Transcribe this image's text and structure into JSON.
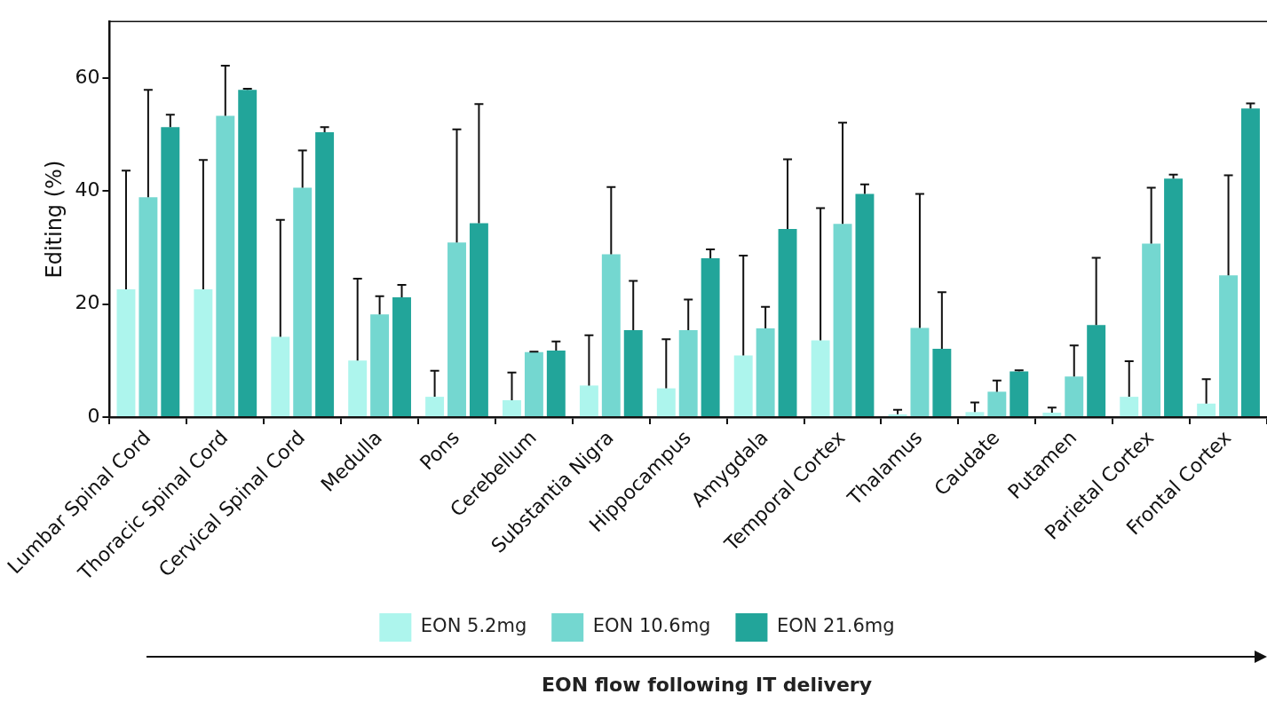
{
  "chart_data": {
    "type": "bar",
    "ylabel": "Editing (%)",
    "xlabel": "EON flow following IT delivery",
    "categories": [
      "Lumbar Spinal Cord",
      "Thoracic Spinal Cord",
      "Cervical Spinal Cord",
      "Medulla",
      "Pons",
      "Cerebellum",
      "Substantia Nigra",
      "Hippocampus",
      "Amygdala",
      "Temporal Cortex",
      "Thalamus",
      "Caudate",
      "Putamen",
      "Parietal Cortex",
      "Frontal Cortex"
    ],
    "ylim": [
      0,
      70
    ],
    "yticks": [
      0,
      20,
      40,
      60
    ],
    "grid": false,
    "legend": "bottom",
    "series": [
      {
        "name": "EON 5.2mg",
        "color": "#adf5ed",
        "values": [
          22.6,
          22.6,
          14.2,
          10.0,
          3.6,
          3.0,
          5.6,
          5.1,
          10.9,
          13.6,
          0.5,
          0.9,
          0.8,
          3.6,
          2.4
        ],
        "errors": [
          [
            22.6,
            43.6
          ],
          [
            22.6,
            45.5
          ],
          [
            14.2,
            34.9
          ],
          [
            10.0,
            24.5
          ],
          [
            3.6,
            8.2
          ],
          [
            3.0,
            7.9
          ],
          [
            5.6,
            14.5
          ],
          [
            5.1,
            13.8
          ],
          [
            10.9,
            28.6
          ],
          [
            13.6,
            37.0
          ],
          [
            0.5,
            1.3
          ],
          [
            0.9,
            2.6
          ],
          [
            0.8,
            1.7
          ],
          [
            3.6,
            9.9
          ],
          [
            2.4,
            6.7
          ]
        ]
      },
      {
        "name": "EON 10.6mg",
        "color": "#74d7d0",
        "values": [
          38.9,
          53.3,
          40.6,
          18.2,
          30.9,
          11.5,
          28.8,
          15.4,
          15.7,
          34.2,
          15.8,
          4.5,
          7.2,
          30.7,
          25.1
        ],
        "errors": [
          [
            38.9,
            57.9
          ],
          [
            53.3,
            62.2
          ],
          [
            40.6,
            47.2
          ],
          [
            18.2,
            21.4
          ],
          [
            30.9,
            50.9
          ],
          [
            11.5,
            11.6
          ],
          [
            28.8,
            40.7
          ],
          [
            15.4,
            20.8
          ],
          [
            15.7,
            19.5
          ],
          [
            34.2,
            52.1
          ],
          [
            15.8,
            39.5
          ],
          [
            4.5,
            6.5
          ],
          [
            7.2,
            12.7
          ],
          [
            30.7,
            40.6
          ],
          [
            25.1,
            42.8
          ]
        ]
      },
      {
        "name": "EON 21.6mg",
        "color": "#22a59a",
        "values": [
          51.3,
          57.9,
          50.4,
          21.2,
          34.3,
          11.8,
          15.4,
          28.1,
          33.3,
          39.5,
          12.1,
          8.1,
          16.3,
          42.2,
          54.6
        ],
        "errors": [
          [
            51.3,
            53.5
          ],
          [
            57.9,
            58.1
          ],
          [
            50.4,
            51.3
          ],
          [
            21.2,
            23.4
          ],
          [
            34.3,
            55.4
          ],
          [
            11.8,
            13.4
          ],
          [
            15.4,
            24.1
          ],
          [
            28.1,
            29.7
          ],
          [
            33.3,
            45.6
          ],
          [
            39.5,
            41.2
          ],
          [
            12.1,
            22.1
          ],
          [
            8.1,
            8.3
          ],
          [
            16.3,
            28.2
          ],
          [
            42.2,
            42.9
          ],
          [
            54.6,
            55.5
          ]
        ]
      }
    ]
  }
}
